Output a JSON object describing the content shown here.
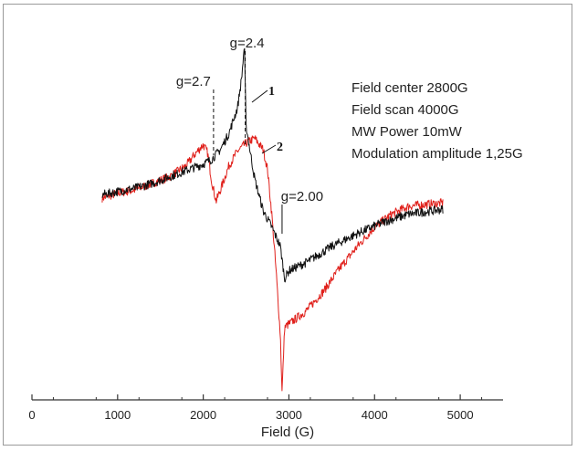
{
  "chart_data": {
    "type": "line",
    "xlabel": "Field (G)",
    "ylabel": "",
    "xlim": [
      0,
      5500
    ],
    "ylim": [
      -1.25,
      1.0
    ],
    "x_ticks": [
      0,
      1000,
      2000,
      3000,
      4000,
      5000
    ],
    "grid": false,
    "colors": {
      "series_1": "#111111",
      "series_2": "#e0201b",
      "axis": "#333333"
    },
    "series": [
      {
        "name": "1",
        "x": [
          820,
          1000,
          1200,
          1400,
          1600,
          1800,
          2000,
          2100,
          2200,
          2300,
          2400,
          2450,
          2480,
          2500,
          2550,
          2600,
          2700,
          2800,
          2900,
          2950,
          3000,
          3200,
          3500,
          3800,
          4100,
          4400,
          4800
        ],
        "y": [
          0.02,
          0.04,
          0.06,
          0.09,
          0.13,
          0.17,
          0.21,
          0.24,
          0.3,
          0.4,
          0.56,
          0.75,
          0.95,
          0.45,
          0.28,
          0.12,
          -0.08,
          -0.18,
          -0.3,
          -0.5,
          -0.45,
          -0.4,
          -0.3,
          -0.22,
          -0.15,
          -0.1,
          -0.07
        ]
      },
      {
        "name": "2",
        "x": [
          820,
          1000,
          1200,
          1400,
          1600,
          1800,
          1900,
          2000,
          2050,
          2100,
          2150,
          2200,
          2300,
          2400,
          2500,
          2600,
          2700,
          2750,
          2800,
          2850,
          2900,
          2920,
          2950,
          3000,
          3200,
          3400,
          3600,
          3800,
          4000,
          4200,
          4400,
          4800
        ],
        "y": [
          0.0,
          0.03,
          0.05,
          0.09,
          0.13,
          0.2,
          0.27,
          0.33,
          0.28,
          0.1,
          -0.02,
          0.05,
          0.2,
          0.29,
          0.34,
          0.37,
          0.3,
          0.18,
          -0.1,
          -0.45,
          -0.85,
          -1.2,
          -0.8,
          -0.78,
          -0.7,
          -0.58,
          -0.43,
          -0.3,
          -0.18,
          -0.1,
          -0.05,
          -0.03
        ]
      }
    ],
    "annotations": [
      {
        "text": "g=2.7",
        "field": 2120
      },
      {
        "text": "g=2.4",
        "field": 2490
      },
      {
        "text": "g=2.00",
        "field": 2920
      }
    ],
    "curve_labels": [
      "1",
      "2"
    ],
    "info_text": [
      "Field center 2800G",
      "Field scan 4000G",
      "MW Power 10mW",
      "Modulation amplitude 1,25G"
    ]
  }
}
